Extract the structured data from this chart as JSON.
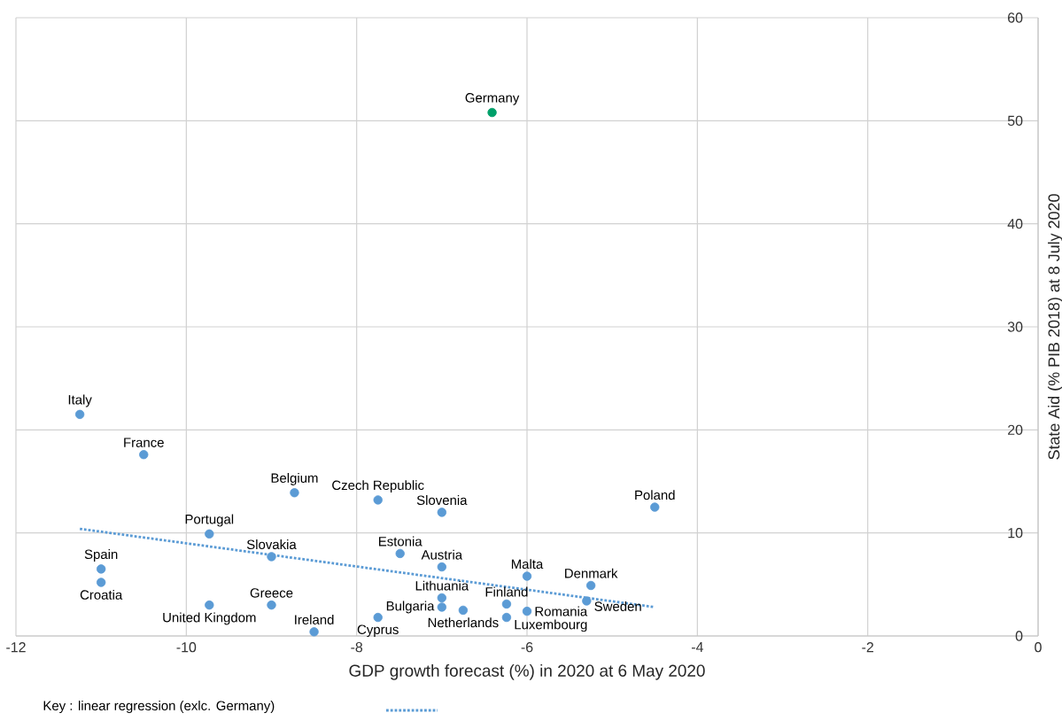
{
  "chart_data": {
    "type": "scatter",
    "xlabel": "GDP growth forecast (%) in 2020 at 6 May 2020",
    "ylabel": "State Aid (% PIB 2018) at 8 July 2020",
    "xlim": [
      -12,
      0
    ],
    "ylim": [
      0,
      60
    ],
    "xticks": [
      -12,
      -10,
      -8,
      -6,
      -4,
      -2,
      0
    ],
    "yticks": [
      0,
      10,
      20,
      30,
      40,
      50,
      60
    ],
    "grid": true,
    "legend": "bottom left",
    "marker": "circle",
    "series": [
      {
        "type": "scatter",
        "x": [
          -6.41,
          -11.25,
          -10.5,
          -8.73,
          -7.75,
          -7,
          -4.5,
          -9.73,
          -9,
          -7.49,
          -7,
          -11,
          -11,
          -6,
          -5.25,
          -5.3,
          -6.24,
          -7,
          -6.75,
          -7,
          -6,
          -6.24,
          -7.75,
          -9,
          -9.73,
          -8.5
        ],
        "values": [
          50.8,
          21.5,
          17.6,
          13.9,
          13.2,
          12.0,
          12.5,
          9.9,
          7.7,
          8.0,
          6.7,
          6.5,
          5.2,
          5.8,
          4.9,
          3.4,
          3.1,
          3.7,
          2.5,
          2.8,
          2.4,
          1.8,
          1.8,
          3.0,
          3.0,
          0.4
        ],
        "colors": [
          "#00a06a",
          "#5b9bd5",
          "#5b9bd5",
          "#5b9bd5",
          "#5b9bd5",
          "#5b9bd5",
          "#5b9bd5",
          "#5b9bd5",
          "#5b9bd5",
          "#5b9bd5",
          "#5b9bd5",
          "#5b9bd5",
          "#5b9bd5",
          "#5b9bd5",
          "#5b9bd5",
          "#5b9bd5",
          "#5b9bd5",
          "#5b9bd5",
          "#5b9bd5",
          "#5b9bd5",
          "#5b9bd5",
          "#5b9bd5",
          "#5b9bd5",
          "#5b9bd5",
          "#5b9bd5",
          "#5b9bd5"
        ]
      },
      {
        "type": "line",
        "name": "Key : linear regression (exlc. Germany)",
        "color": "#5b9bd5",
        "line_style": "dotted",
        "marker": "none",
        "x": [
          -11.25,
          -4.5
        ],
        "values": [
          10.4,
          2.8
        ]
      }
    ],
    "annotations": [
      {
        "text": "Germany",
        "x": -6.41,
        "y": 50.8
      },
      {
        "text": "Italy",
        "x": -11.25,
        "y": 21.5
      },
      {
        "text": "France",
        "x": -10.5,
        "y": 17.6
      },
      {
        "text": "Belgium",
        "x": -8.73,
        "y": 13.9
      },
      {
        "text": "Czech Republic",
        "x": -7.75,
        "y": 13.2
      },
      {
        "text": "Slovenia",
        "x": -7,
        "y": 12.0
      },
      {
        "text": "Poland",
        "x": -4.5,
        "y": 12.5
      },
      {
        "text": "Portugal",
        "x": -9.73,
        "y": 9.9
      },
      {
        "text": "Slovakia",
        "x": -9,
        "y": 7.7
      },
      {
        "text": "Estonia",
        "x": -7.49,
        "y": 8.0
      },
      {
        "text": "Austria",
        "x": -7,
        "y": 6.7
      },
      {
        "text": "Spain",
        "x": -11,
        "y": 6.5
      },
      {
        "text": "Croatia",
        "x": -11,
        "y": 5.2
      },
      {
        "text": "Malta",
        "x": -6,
        "y": 5.8
      },
      {
        "text": "Denmark",
        "x": -5.25,
        "y": 4.9
      },
      {
        "text": "Sweden",
        "x": -5.3,
        "y": 3.4
      },
      {
        "text": "Finland",
        "x": -6.24,
        "y": 3.1
      },
      {
        "text": "Lithuania",
        "x": -7,
        "y": 3.7
      },
      {
        "text": "Netherlands",
        "x": -6.75,
        "y": 2.5
      },
      {
        "text": "Bulgaria",
        "x": -7,
        "y": 2.8
      },
      {
        "text": "Romania",
        "x": -6,
        "y": 2.4
      },
      {
        "text": "Luxembourg",
        "x": -6.24,
        "y": 1.8
      },
      {
        "text": "Cyprus",
        "x": -7.75,
        "y": 1.8
      },
      {
        "text": "Greece",
        "x": -9,
        "y": 3.0
      },
      {
        "text": "United Kingdom",
        "x": -9.73,
        "y": 3.0
      },
      {
        "text": "Ireland",
        "x": -8.5,
        "y": 0.4
      }
    ]
  }
}
